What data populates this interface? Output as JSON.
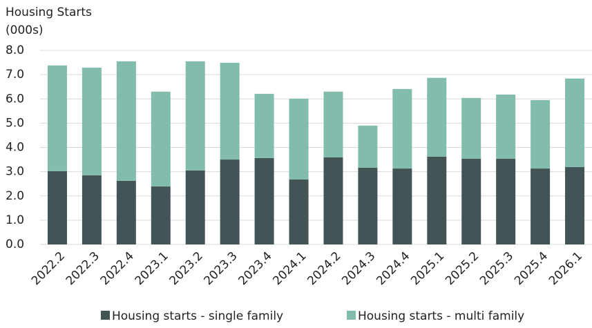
{
  "chart_data": {
    "type": "stacked_bar",
    "title": "Housing Starts",
    "subtitle": "(000s)",
    "categories": [
      "2022.2",
      "2022.3",
      "2022.4",
      "2023.1",
      "2023.2",
      "2023.3",
      "2023.4",
      "2024.1",
      "2024.2",
      "2024.3",
      "2024.4",
      "2025.1",
      "2025.2",
      "2025.3",
      "2025.4",
      "2026.1"
    ],
    "series": [
      {
        "name": "Housing starts - single family",
        "color": "#435456",
        "values": [
          3.02,
          2.85,
          2.62,
          2.39,
          3.05,
          3.5,
          3.56,
          2.68,
          3.59,
          3.16,
          3.13,
          3.62,
          3.53,
          3.53,
          3.13,
          3.19
        ]
      },
      {
        "name": "Housing starts - multi family",
        "color": "#82bcac",
        "values": [
          4.36,
          4.44,
          4.93,
          3.91,
          4.5,
          3.99,
          2.65,
          3.33,
          2.71,
          1.74,
          3.28,
          3.25,
          2.51,
          2.65,
          2.82,
          3.65
        ]
      }
    ],
    "ylim": [
      0,
      8
    ],
    "yticks": [
      {
        "value": 0,
        "label": "0.0"
      },
      {
        "value": 1,
        "label": "1.0"
      },
      {
        "value": 2,
        "label": "2.0"
      },
      {
        "value": 3,
        "label": "3.0"
      },
      {
        "value": 4,
        "label": "4.0"
      },
      {
        "value": 5,
        "label": "5.0"
      },
      {
        "value": 6,
        "label": "6.0"
      },
      {
        "value": 7,
        "label": "7.0"
      },
      {
        "value": 8,
        "label": "8.0"
      }
    ],
    "grid": true,
    "legend": "bottom"
  }
}
